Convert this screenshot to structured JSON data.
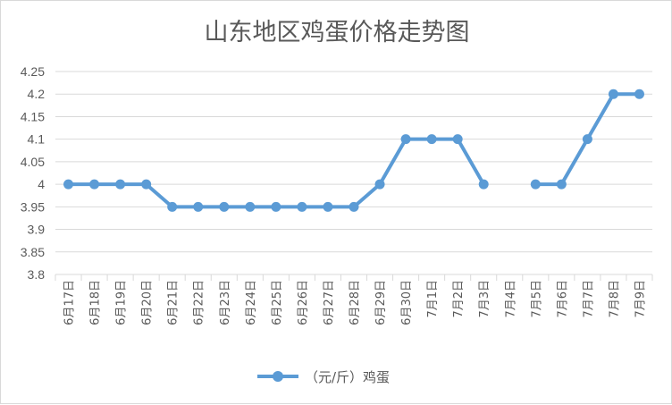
{
  "chart_data": {
    "type": "line",
    "title": "山东地区鸡蛋价格走势图",
    "xlabel": "",
    "ylabel": "",
    "categories": [
      "6月17日",
      "6月18日",
      "6月19日",
      "6月20日",
      "6月21日",
      "6月22日",
      "6月23日",
      "6月24日",
      "6月25日",
      "6月26日",
      "6月27日",
      "6月28日",
      "6月29日",
      "6月30日",
      "7月1日",
      "7月2日",
      "7月3日",
      "7月4日",
      "7月5日",
      "7月6日",
      "7月7日",
      "7月8日",
      "7月9日"
    ],
    "series": [
      {
        "name": "（元/斤）鸡蛋",
        "color": "#5b9bd5",
        "values": [
          4,
          4,
          4,
          4,
          3.95,
          3.95,
          3.95,
          3.95,
          3.95,
          3.95,
          3.95,
          3.95,
          4,
          4.1,
          4.1,
          4.1,
          4,
          null,
          4,
          4,
          4.1,
          4.2,
          4.2
        ]
      }
    ],
    "ylim": [
      3.8,
      4.25
    ],
    "yticks": [
      3.8,
      3.85,
      3.9,
      3.95,
      4,
      4.05,
      4.1,
      4.15,
      4.2,
      4.25
    ],
    "ytick_labels": [
      "3.8",
      "3.85",
      "3.9",
      "3.95",
      "4",
      "4.05",
      "4.1",
      "4.15",
      "4.2",
      "4.25"
    ],
    "grid": true,
    "legend_position": "bottom",
    "gridline_color": "#d9d9d9"
  }
}
